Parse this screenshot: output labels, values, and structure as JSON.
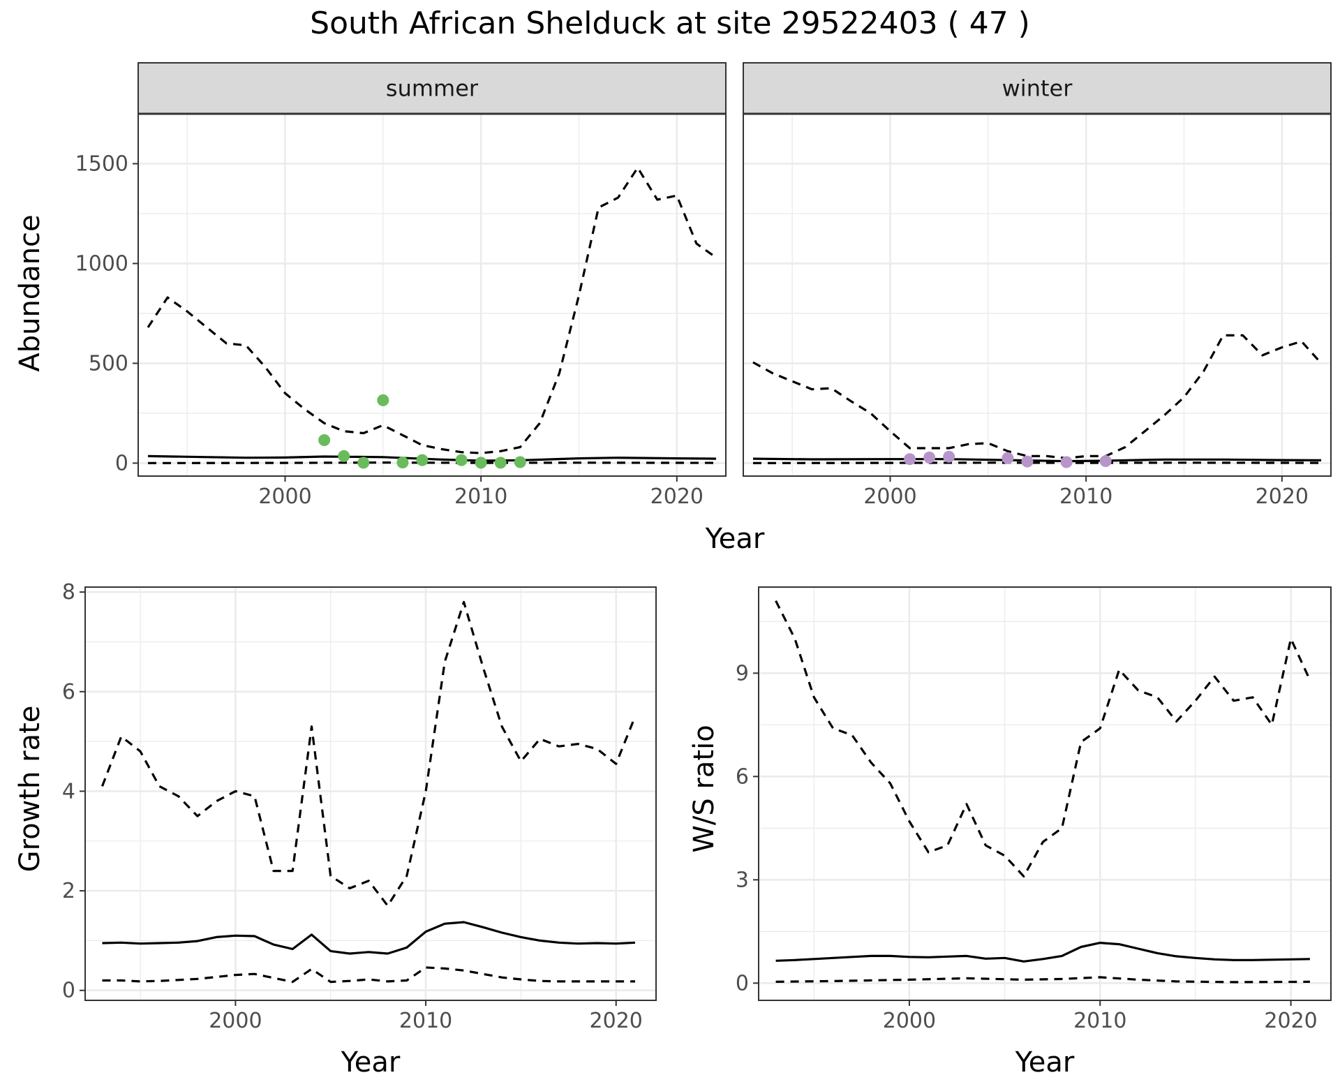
{
  "title": "South African Shelduck at site 29522403 ( 47 )",
  "colors": {
    "summer_points": "#6abb5c",
    "winter_points": "#b794c9",
    "line": "#000000",
    "grid": "#ebebeb",
    "strip": "#d9d9d9"
  },
  "chart_data": [
    {
      "type": "line",
      "facet": "summer",
      "xlabel": "Year",
      "ylabel": "Abundance",
      "xlim": [
        1992.5,
        2022.5
      ],
      "ylim": [
        -65,
        1750
      ],
      "x_ticks": [
        2000,
        2010,
        2020
      ],
      "y_ticks": [
        0,
        500,
        1000,
        1500
      ],
      "grid": true,
      "series": [
        {
          "style": "solid",
          "x": [
            1993,
            1995,
            1998,
            2000,
            2002,
            2005,
            2008,
            2010,
            2012,
            2015,
            2017,
            2020,
            2022
          ],
          "y": [
            35,
            32,
            27,
            28,
            33,
            30,
            18,
            12,
            14,
            24,
            27,
            24,
            22
          ]
        },
        {
          "style": "dashed",
          "x": [
            1993,
            1994,
            1995,
            1996,
            1997,
            1998,
            1999,
            2000,
            2001,
            2002,
            2003,
            2004,
            2005,
            2006,
            2007,
            2008,
            2009,
            2010,
            2011,
            2012,
            2013,
            2014,
            2015,
            2016,
            2017,
            2018,
            2019,
            2020,
            2021,
            2022
          ],
          "y": [
            680,
            830,
            760,
            680,
            600,
            590,
            480,
            350,
            270,
            200,
            160,
            150,
            190,
            140,
            90,
            70,
            55,
            50,
            60,
            80,
            200,
            450,
            840,
            1280,
            1330,
            1480,
            1320,
            1340,
            1100,
            1030
          ]
        },
        {
          "style": "dashed",
          "x": [
            1993,
            2000,
            2005,
            2010,
            2015,
            2022
          ],
          "y": [
            0,
            1,
            3,
            1,
            2,
            1
          ]
        }
      ],
      "points": {
        "x": [
          2002,
          2003,
          2004,
          2005,
          2006,
          2007,
          2009,
          2010,
          2011,
          2012
        ],
        "y": [
          115,
          35,
          2,
          315,
          3,
          15,
          15,
          2,
          2,
          5
        ]
      }
    },
    {
      "type": "line",
      "facet": "winter",
      "xlabel": "Year",
      "ylabel": "",
      "xlim": [
        1992.5,
        2022.5
      ],
      "ylim": [
        -65,
        1750
      ],
      "x_ticks": [
        2000,
        2010,
        2020
      ],
      "y_ticks": [],
      "grid": true,
      "series": [
        {
          "style": "solid",
          "x": [
            1993,
            1996,
            2000,
            2003,
            2006,
            2009,
            2011,
            2014,
            2017,
            2020,
            2022
          ],
          "y": [
            22,
            19,
            20,
            20,
            15,
            10,
            12,
            18,
            18,
            15,
            14
          ]
        },
        {
          "style": "dashed",
          "x": [
            1993,
            1994,
            1995,
            1996,
            1997,
            1998,
            1999,
            2000,
            2001,
            2002,
            2003,
            2004,
            2005,
            2006,
            2007,
            2008,
            2009,
            2010,
            2011,
            2012,
            2013,
            2014,
            2015,
            2016,
            2017,
            2018,
            2019,
            2020,
            2021,
            2022
          ],
          "y": [
            505,
            450,
            410,
            370,
            375,
            310,
            250,
            160,
            75,
            75,
            75,
            95,
            100,
            60,
            35,
            35,
            25,
            35,
            35,
            80,
            160,
            240,
            330,
            460,
            640,
            640,
            540,
            580,
            610,
            500
          ]
        },
        {
          "style": "dashed",
          "x": [
            1993,
            2000,
            2005,
            2010,
            2015,
            2022
          ],
          "y": [
            0,
            1,
            2,
            1,
            2,
            1
          ]
        }
      ],
      "points": {
        "x": [
          2001,
          2002,
          2003,
          2006,
          2007,
          2009,
          2011
        ],
        "y": [
          20,
          28,
          32,
          25,
          8,
          5,
          10
        ]
      }
    },
    {
      "type": "line",
      "xlabel": "Year",
      "ylabel": "Growth rate",
      "xlim": [
        1992.1,
        2022.1
      ],
      "ylim": [
        -0.2,
        8.1
      ],
      "x_ticks": [
        2000,
        2010,
        2020
      ],
      "y_ticks": [
        0,
        2,
        4,
        6,
        8
      ],
      "grid": true,
      "series": [
        {
          "style": "solid",
          "x": [
            1993,
            1994,
            1995,
            1996,
            1997,
            1998,
            1999,
            2000,
            2001,
            2002,
            2003,
            2004,
            2005,
            2006,
            2007,
            2008,
            2009,
            2010,
            2011,
            2012,
            2013,
            2014,
            2015,
            2016,
            2017,
            2018,
            2019,
            2020,
            2021
          ],
          "y": [
            0.95,
            0.96,
            0.94,
            0.95,
            0.96,
            0.99,
            1.07,
            1.1,
            1.09,
            0.92,
            0.83,
            1.12,
            0.79,
            0.74,
            0.77,
            0.74,
            0.86,
            1.18,
            1.34,
            1.37,
            1.27,
            1.16,
            1.07,
            1.0,
            0.96,
            0.94,
            0.95,
            0.94,
            0.96
          ]
        },
        {
          "style": "dashed",
          "x": [
            1993,
            1994,
            1995,
            1996,
            1997,
            1998,
            1999,
            2000,
            2001,
            2002,
            2003,
            2004,
            2005,
            2006,
            2007,
            2008,
            2009,
            2010,
            2011,
            2012,
            2013,
            2014,
            2015,
            2016,
            2017,
            2018,
            2019,
            2020,
            2021
          ],
          "y": [
            4.1,
            5.1,
            4.8,
            4.1,
            3.9,
            3.5,
            3.8,
            4.0,
            3.9,
            2.4,
            2.4,
            5.3,
            2.3,
            2.05,
            2.2,
            1.7,
            2.3,
            4.0,
            6.6,
            7.8,
            6.5,
            5.3,
            4.6,
            5.05,
            4.9,
            4.95,
            4.85,
            4.55,
            5.5
          ]
        },
        {
          "style": "dashed",
          "x": [
            1993,
            1994,
            1995,
            1996,
            1997,
            1998,
            1999,
            2000,
            2001,
            2002,
            2003,
            2004,
            2005,
            2006,
            2007,
            2008,
            2009,
            2010,
            2011,
            2012,
            2013,
            2014,
            2015,
            2016,
            2017,
            2018,
            2019,
            2020,
            2021
          ],
          "y": [
            0.2,
            0.2,
            0.18,
            0.19,
            0.21,
            0.23,
            0.27,
            0.31,
            0.33,
            0.25,
            0.17,
            0.43,
            0.17,
            0.19,
            0.22,
            0.18,
            0.2,
            0.46,
            0.44,
            0.4,
            0.33,
            0.26,
            0.22,
            0.19,
            0.18,
            0.18,
            0.18,
            0.18,
            0.18
          ]
        }
      ]
    },
    {
      "type": "line",
      "xlabel": "Year",
      "ylabel": "W/S ratio",
      "xlim": [
        1992.1,
        2022.1
      ],
      "ylim": [
        -0.5,
        11.5
      ],
      "x_ticks": [
        2000,
        2010,
        2020
      ],
      "y_ticks": [
        0,
        3,
        6,
        9
      ],
      "grid": true,
      "series": [
        {
          "style": "solid",
          "x": [
            1993,
            1994,
            1995,
            1996,
            1997,
            1998,
            1999,
            2000,
            2001,
            2002,
            2003,
            2004,
            2005,
            2006,
            2007,
            2008,
            2009,
            2010,
            2011,
            2012,
            2013,
            2014,
            2015,
            2016,
            2017,
            2018,
            2019,
            2020,
            2021
          ],
          "y": [
            0.65,
            0.67,
            0.7,
            0.73,
            0.76,
            0.79,
            0.79,
            0.76,
            0.75,
            0.77,
            0.79,
            0.71,
            0.73,
            0.63,
            0.7,
            0.79,
            1.05,
            1.17,
            1.13,
            1.0,
            0.87,
            0.78,
            0.73,
            0.69,
            0.67,
            0.67,
            0.68,
            0.69,
            0.7
          ]
        },
        {
          "style": "dashed",
          "x": [
            1993,
            1994,
            1995,
            1996,
            1997,
            1998,
            1999,
            2000,
            2001,
            2002,
            2003,
            2004,
            2005,
            2006,
            2007,
            2008,
            2009,
            2010,
            2011,
            2012,
            2013,
            2014,
            2015,
            2016,
            2017,
            2018,
            2019,
            2020,
            2021
          ],
          "y": [
            11.1,
            10.0,
            8.3,
            7.4,
            7.2,
            6.4,
            5.8,
            4.7,
            3.8,
            4.0,
            5.2,
            4.0,
            3.7,
            3.1,
            4.1,
            4.5,
            7.0,
            7.4,
            9.1,
            8.5,
            8.3,
            7.6,
            8.2,
            8.9,
            8.2,
            8.3,
            7.5,
            10.0,
            8.8
          ]
        },
        {
          "style": "dashed",
          "x": [
            1993,
            1996,
            2000,
            2003,
            2006,
            2008,
            2010,
            2012,
            2014,
            2017,
            2021
          ],
          "y": [
            0.04,
            0.06,
            0.1,
            0.14,
            0.1,
            0.12,
            0.17,
            0.1,
            0.05,
            0.03,
            0.04
          ]
        }
      ]
    }
  ]
}
